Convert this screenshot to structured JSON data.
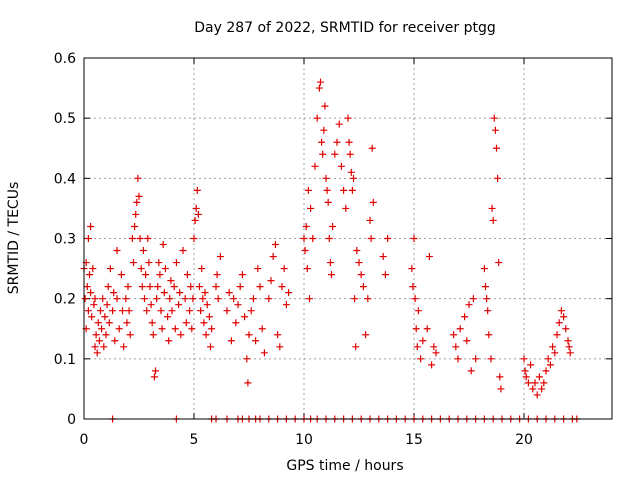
{
  "chart_data": {
    "type": "scatter",
    "title": "Day 287 of 2022, SRMTID for receiver ptgg",
    "xlabel": "GPS time / hours",
    "ylabel": "SRMTID / TECUs",
    "xlim": [
      0,
      24
    ],
    "ylim": [
      0,
      0.6
    ],
    "grid": true,
    "legend": "none",
    "marker": "+",
    "colors": {
      "points": "#e00000",
      "grid": "#a0a0a0",
      "axes": "#000000"
    },
    "x_ticks": [
      {
        "value": 0,
        "label": "0"
      },
      {
        "value": 5,
        "label": "5"
      },
      {
        "value": 10,
        "label": "10"
      },
      {
        "value": 15,
        "label": "15"
      },
      {
        "value": 20,
        "label": "20"
      }
    ],
    "y_ticks": [
      {
        "value": 0,
        "label": "0"
      },
      {
        "value": 0.1,
        "label": "0.1"
      },
      {
        "value": 0.2,
        "label": "0.2"
      },
      {
        "value": 0.3,
        "label": "0.3"
      },
      {
        "value": 0.4,
        "label": "0.4"
      },
      {
        "value": 0.5,
        "label": "0.5"
      },
      {
        "value": 0.6,
        "label": "0.6"
      }
    ],
    "series": [
      {
        "name": "SRMTID",
        "points": [
          [
            0.0,
            0.25
          ],
          [
            0.05,
            0.2
          ],
          [
            0.1,
            0.26
          ],
          [
            0.1,
            0.15
          ],
          [
            0.15,
            0.22
          ],
          [
            0.2,
            0.3
          ],
          [
            0.2,
            0.18
          ],
          [
            0.25,
            0.24
          ],
          [
            0.3,
            0.21
          ],
          [
            0.3,
            0.32
          ],
          [
            0.35,
            0.17
          ],
          [
            0.4,
            0.25
          ],
          [
            0.45,
            0.19
          ],
          [
            0.5,
            0.12
          ],
          [
            0.5,
            0.2
          ],
          [
            0.55,
            0.14
          ],
          [
            0.6,
            0.11
          ],
          [
            0.65,
            0.16
          ],
          [
            0.7,
            0.13
          ],
          [
            0.75,
            0.18
          ],
          [
            0.8,
            0.15
          ],
          [
            0.85,
            0.2
          ],
          [
            0.9,
            0.12
          ],
          [
            0.95,
            0.17
          ],
          [
            1.0,
            0.14
          ],
          [
            1.05,
            0.19
          ],
          [
            1.1,
            0.22
          ],
          [
            1.15,
            0.16
          ],
          [
            1.2,
            0.25
          ],
          [
            1.3,
            0.18
          ],
          [
            1.35,
            0.21
          ],
          [
            1.4,
            0.13
          ],
          [
            1.5,
            0.28
          ],
          [
            1.5,
            0.2
          ],
          [
            1.6,
            0.15
          ],
          [
            1.7,
            0.24
          ],
          [
            1.75,
            0.18
          ],
          [
            1.8,
            0.12
          ],
          [
            1.9,
            0.2
          ],
          [
            1.95,
            0.16
          ],
          [
            2.0,
            0.22
          ],
          [
            2.05,
            0.18
          ],
          [
            2.1,
            0.14
          ],
          [
            2.2,
            0.3
          ],
          [
            2.25,
            0.26
          ],
          [
            2.3,
            0.32
          ],
          [
            2.35,
            0.34
          ],
          [
            2.4,
            0.36
          ],
          [
            2.45,
            0.4
          ],
          [
            2.5,
            0.37
          ],
          [
            2.55,
            0.3
          ],
          [
            2.6,
            0.25
          ],
          [
            2.65,
            0.22
          ],
          [
            2.7,
            0.28
          ],
          [
            2.75,
            0.2
          ],
          [
            2.8,
            0.24
          ],
          [
            2.85,
            0.18
          ],
          [
            2.9,
            0.3
          ],
          [
            2.95,
            0.26
          ],
          [
            3.0,
            0.22
          ],
          [
            3.05,
            0.19
          ],
          [
            3.1,
            0.16
          ],
          [
            3.15,
            0.14
          ],
          [
            3.2,
            0.07
          ],
          [
            3.25,
            0.08
          ],
          [
            3.3,
            0.2
          ],
          [
            3.35,
            0.22
          ],
          [
            3.4,
            0.26
          ],
          [
            3.45,
            0.24
          ],
          [
            3.5,
            0.18
          ],
          [
            3.55,
            0.15
          ],
          [
            3.6,
            0.29
          ],
          [
            3.65,
            0.21
          ],
          [
            3.7,
            0.25
          ],
          [
            3.8,
            0.17
          ],
          [
            3.85,
            0.13
          ],
          [
            3.9,
            0.2
          ],
          [
            3.95,
            0.23
          ],
          [
            4.0,
            0.18
          ],
          [
            4.1,
            0.22
          ],
          [
            4.15,
            0.15
          ],
          [
            4.2,
            0.26
          ],
          [
            4.3,
            0.19
          ],
          [
            4.35,
            0.21
          ],
          [
            4.4,
            0.14
          ],
          [
            4.5,
            0.28
          ],
          [
            4.6,
            0.2
          ],
          [
            4.65,
            0.16
          ],
          [
            4.7,
            0.24
          ],
          [
            4.8,
            0.18
          ],
          [
            4.85,
            0.22
          ],
          [
            4.9,
            0.15
          ],
          [
            4.95,
            0.2
          ],
          [
            5.0,
            0.3
          ],
          [
            5.05,
            0.33
          ],
          [
            5.1,
            0.35
          ],
          [
            5.15,
            0.38
          ],
          [
            5.2,
            0.34
          ],
          [
            5.25,
            0.22
          ],
          [
            5.3,
            0.18
          ],
          [
            5.35,
            0.25
          ],
          [
            5.4,
            0.2
          ],
          [
            5.45,
            0.16
          ],
          [
            5.5,
            0.21
          ],
          [
            5.55,
            0.14
          ],
          [
            5.6,
            0.19
          ],
          [
            5.7,
            0.17
          ],
          [
            5.75,
            0.12
          ],
          [
            5.8,
            0.15
          ],
          [
            6.0,
            0.22
          ],
          [
            6.05,
            0.24
          ],
          [
            6.1,
            0.2
          ],
          [
            6.2,
            0.27
          ],
          [
            6.5,
            0.18
          ],
          [
            6.6,
            0.21
          ],
          [
            6.7,
            0.13
          ],
          [
            6.8,
            0.2
          ],
          [
            6.9,
            0.16
          ],
          [
            7.0,
            0.19
          ],
          [
            7.1,
            0.22
          ],
          [
            7.2,
            0.24
          ],
          [
            7.3,
            0.17
          ],
          [
            7.4,
            0.1
          ],
          [
            7.45,
            0.06
          ],
          [
            7.5,
            0.14
          ],
          [
            7.6,
            0.18
          ],
          [
            7.7,
            0.2
          ],
          [
            7.8,
            0.13
          ],
          [
            7.9,
            0.25
          ],
          [
            8.0,
            0.22
          ],
          [
            8.1,
            0.15
          ],
          [
            8.2,
            0.11
          ],
          [
            8.4,
            0.2
          ],
          [
            8.5,
            0.23
          ],
          [
            8.6,
            0.27
          ],
          [
            8.7,
            0.29
          ],
          [
            8.8,
            0.14
          ],
          [
            8.9,
            0.12
          ],
          [
            9.0,
            0.22
          ],
          [
            9.1,
            0.25
          ],
          [
            9.2,
            0.19
          ],
          [
            9.3,
            0.21
          ],
          [
            10.0,
            0.3
          ],
          [
            10.05,
            0.28
          ],
          [
            10.1,
            0.32
          ],
          [
            10.15,
            0.25
          ],
          [
            10.2,
            0.38
          ],
          [
            10.25,
            0.2
          ],
          [
            10.3,
            0.35
          ],
          [
            10.4,
            0.3
          ],
          [
            10.5,
            0.42
          ],
          [
            10.6,
            0.5
          ],
          [
            10.7,
            0.55
          ],
          [
            10.75,
            0.56
          ],
          [
            10.8,
            0.46
          ],
          [
            10.85,
            0.44
          ],
          [
            10.9,
            0.48
          ],
          [
            10.95,
            0.52
          ],
          [
            11.0,
            0.4
          ],
          [
            11.05,
            0.38
          ],
          [
            11.1,
            0.36
          ],
          [
            11.15,
            0.3
          ],
          [
            11.2,
            0.26
          ],
          [
            11.25,
            0.24
          ],
          [
            11.3,
            0.32
          ],
          [
            11.4,
            0.44
          ],
          [
            11.5,
            0.46
          ],
          [
            11.6,
            0.49
          ],
          [
            11.7,
            0.42
          ],
          [
            11.8,
            0.38
          ],
          [
            11.9,
            0.35
          ],
          [
            12.0,
            0.5
          ],
          [
            12.05,
            0.46
          ],
          [
            12.1,
            0.44
          ],
          [
            12.15,
            0.41
          ],
          [
            12.2,
            0.38
          ],
          [
            12.25,
            0.4
          ],
          [
            12.3,
            0.2
          ],
          [
            12.35,
            0.12
          ],
          [
            12.4,
            0.28
          ],
          [
            12.5,
            0.26
          ],
          [
            12.6,
            0.24
          ],
          [
            12.7,
            0.22
          ],
          [
            12.8,
            0.14
          ],
          [
            12.9,
            0.2
          ],
          [
            13.0,
            0.33
          ],
          [
            13.05,
            0.3
          ],
          [
            13.1,
            0.45
          ],
          [
            13.15,
            0.36
          ],
          [
            13.6,
            0.27
          ],
          [
            13.7,
            0.24
          ],
          [
            13.8,
            0.3
          ],
          [
            14.9,
            0.25
          ],
          [
            14.95,
            0.22
          ],
          [
            15.0,
            0.3
          ],
          [
            15.05,
            0.2
          ],
          [
            15.1,
            0.15
          ],
          [
            15.15,
            0.12
          ],
          [
            15.2,
            0.18
          ],
          [
            15.3,
            0.1
          ],
          [
            15.4,
            0.13
          ],
          [
            15.6,
            0.15
          ],
          [
            15.7,
            0.27
          ],
          [
            15.8,
            0.09
          ],
          [
            15.9,
            0.12
          ],
          [
            16.0,
            0.11
          ],
          [
            16.8,
            0.14
          ],
          [
            16.9,
            0.12
          ],
          [
            17.0,
            0.1
          ],
          [
            17.1,
            0.15
          ],
          [
            17.3,
            0.17
          ],
          [
            17.4,
            0.13
          ],
          [
            17.5,
            0.19
          ],
          [
            17.6,
            0.08
          ],
          [
            17.7,
            0.2
          ],
          [
            17.8,
            0.1
          ],
          [
            18.2,
            0.25
          ],
          [
            18.25,
            0.22
          ],
          [
            18.3,
            0.2
          ],
          [
            18.35,
            0.18
          ],
          [
            18.4,
            0.14
          ],
          [
            18.5,
            0.1
          ],
          [
            18.55,
            0.35
          ],
          [
            18.6,
            0.33
          ],
          [
            18.65,
            0.5
          ],
          [
            18.7,
            0.48
          ],
          [
            18.75,
            0.45
          ],
          [
            18.8,
            0.4
          ],
          [
            18.85,
            0.26
          ],
          [
            18.9,
            0.07
          ],
          [
            18.95,
            0.05
          ],
          [
            20.0,
            0.1
          ],
          [
            20.05,
            0.08
          ],
          [
            20.1,
            0.07
          ],
          [
            20.2,
            0.06
          ],
          [
            20.3,
            0.09
          ],
          [
            20.4,
            0.05
          ],
          [
            20.5,
            0.06
          ],
          [
            20.6,
            0.04
          ],
          [
            20.7,
            0.07
          ],
          [
            20.8,
            0.05
          ],
          [
            20.9,
            0.06
          ],
          [
            21.0,
            0.08
          ],
          [
            21.1,
            0.1
          ],
          [
            21.2,
            0.09
          ],
          [
            21.3,
            0.12
          ],
          [
            21.4,
            0.11
          ],
          [
            21.5,
            0.14
          ],
          [
            21.6,
            0.16
          ],
          [
            21.7,
            0.18
          ],
          [
            21.8,
            0.17
          ],
          [
            21.9,
            0.15
          ],
          [
            22.0,
            0.13
          ],
          [
            22.05,
            0.12
          ],
          [
            22.1,
            0.11
          ],
          [
            1.3,
            0.0
          ],
          [
            4.2,
            0.0
          ],
          [
            5.8,
            0.0
          ],
          [
            6.0,
            0.0
          ],
          [
            6.5,
            0.0
          ],
          [
            7.0,
            0.0
          ],
          [
            7.2,
            0.0
          ],
          [
            7.5,
            0.0
          ],
          [
            7.8,
            0.0
          ],
          [
            8.0,
            0.0
          ],
          [
            8.4,
            0.0
          ],
          [
            8.8,
            0.0
          ],
          [
            9.2,
            0.0
          ],
          [
            9.6,
            0.0
          ],
          [
            10.0,
            0.0
          ],
          [
            10.3,
            0.0
          ],
          [
            10.6,
            0.0
          ],
          [
            11.0,
            0.0
          ],
          [
            11.4,
            0.0
          ],
          [
            11.8,
            0.0
          ],
          [
            12.2,
            0.0
          ],
          [
            12.6,
            0.0
          ],
          [
            13.0,
            0.0
          ],
          [
            13.4,
            0.0
          ],
          [
            13.8,
            0.0
          ],
          [
            14.2,
            0.0
          ],
          [
            14.6,
            0.0
          ],
          [
            15.0,
            0.0
          ],
          [
            15.4,
            0.0
          ],
          [
            15.8,
            0.0
          ],
          [
            16.2,
            0.0
          ],
          [
            16.6,
            0.0
          ],
          [
            17.0,
            0.0
          ],
          [
            17.4,
            0.0
          ],
          [
            17.8,
            0.0
          ],
          [
            18.2,
            0.0
          ],
          [
            18.6,
            0.0
          ],
          [
            19.0,
            0.0
          ],
          [
            19.4,
            0.0
          ],
          [
            19.8,
            0.0
          ],
          [
            20.2,
            0.0
          ],
          [
            20.6,
            0.0
          ],
          [
            21.0,
            0.0
          ],
          [
            21.4,
            0.0
          ],
          [
            21.8,
            0.0
          ],
          [
            22.2,
            0.0
          ],
          [
            22.4,
            0.0
          ]
        ]
      }
    ]
  }
}
